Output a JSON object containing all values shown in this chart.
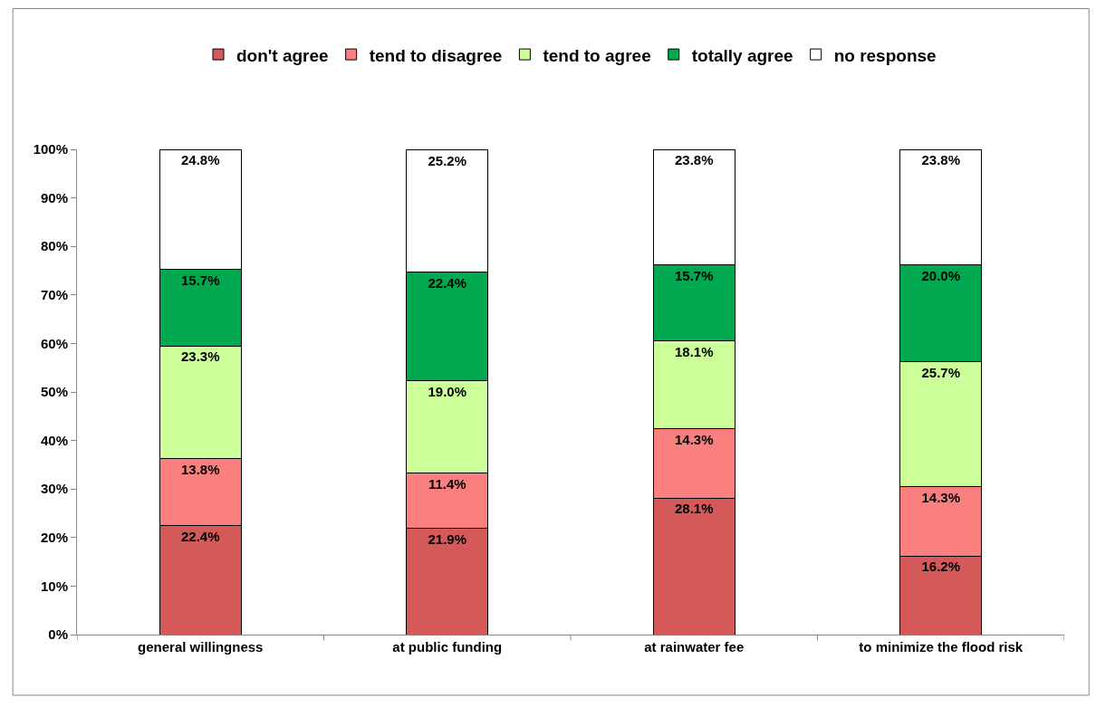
{
  "chart_data": {
    "type": "bar",
    "stacked": true,
    "categories": [
      "general willingness",
      "at public funding",
      "at rainwater fee",
      "to minimize the flood risk"
    ],
    "series": [
      {
        "name": "don't agree",
        "color": "#d45a5a",
        "values": [
          22.4,
          21.9,
          28.1,
          16.2
        ],
        "value_labels": [
          "22.4%",
          "21.9%",
          "28.1%",
          "16.2%"
        ]
      },
      {
        "name": "tend to disagree",
        "color": "#fa8080",
        "values": [
          13.8,
          11.4,
          14.3,
          14.3
        ],
        "value_labels": [
          "13.8%",
          "11.4%",
          "14.3%",
          "14.3%"
        ]
      },
      {
        "name": "tend to agree",
        "color": "#ccff99",
        "values": [
          23.3,
          19.0,
          18.1,
          25.7
        ],
        "value_labels": [
          "23.3%",
          "19.0%",
          "18.1%",
          "25.7%"
        ]
      },
      {
        "name": "totally agree",
        "color": "#00a84f",
        "values": [
          15.7,
          22.4,
          15.7,
          20.0
        ],
        "value_labels": [
          "15.7%",
          "22.4%",
          "15.7%",
          "20.0%"
        ]
      },
      {
        "name": "no response",
        "color": "#ffffff",
        "values": [
          24.8,
          25.2,
          23.8,
          23.8
        ],
        "value_labels": [
          "24.8%",
          "25.2%",
          "23.8%",
          "23.8%"
        ]
      }
    ],
    "ylim": [
      0,
      100
    ],
    "yticks": [
      {
        "value": 0,
        "label": "0%"
      },
      {
        "value": 10,
        "label": "10%"
      },
      {
        "value": 20,
        "label": "20%"
      },
      {
        "value": 30,
        "label": "30%"
      },
      {
        "value": 40,
        "label": "40%"
      },
      {
        "value": 50,
        "label": "50%"
      },
      {
        "value": 60,
        "label": "60%"
      },
      {
        "value": 70,
        "label": "70%"
      },
      {
        "value": 80,
        "label": "80%"
      },
      {
        "value": 90,
        "label": "90%"
      },
      {
        "value": 100,
        "label": "100%"
      }
    ],
    "legend": "top"
  }
}
